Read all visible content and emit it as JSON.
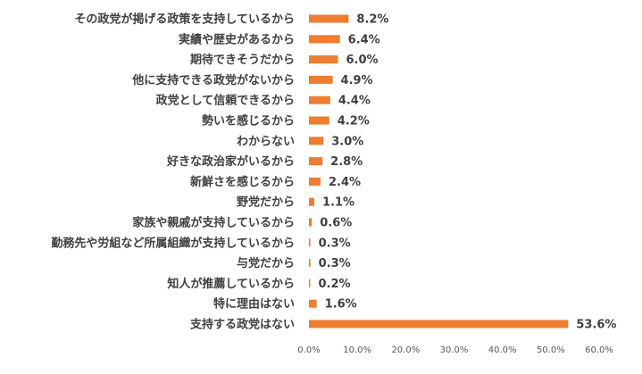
{
  "chart_data": {
    "type": "bar",
    "orientation": "horizontal",
    "categories": [
      "その政党が掲げる政策を支持しているから",
      "実績や歴史があるから",
      "期待できそうだから",
      "他に支持できる政党がないから",
      "政党として信頼できるから",
      "勢いを感じるから",
      "わからない",
      "好きな政治家がいるから",
      "新鮮さを感じるから",
      "野党だから",
      "家族や親戚が支持しているから",
      "勤務先や労組など所属組織が支持しているから",
      "与党だから",
      "知人が推薦しているから",
      "特に理由はない",
      "支持する政党はない"
    ],
    "values": [
      8.2,
      6.4,
      6.0,
      4.9,
      4.4,
      4.2,
      3.0,
      2.8,
      2.4,
      1.1,
      0.6,
      0.3,
      0.3,
      0.2,
      1.6,
      53.6
    ],
    "value_labels": [
      "8.2%",
      "6.4%",
      "6.0%",
      "4.9%",
      "4.4%",
      "4.2%",
      "3.0%",
      "2.8%",
      "2.4%",
      "1.1%",
      "0.6%",
      "0.3%",
      "0.3%",
      "0.2%",
      "1.6%",
      "53.6%"
    ],
    "x_ticks": [
      0,
      10,
      20,
      30,
      40,
      50,
      60
    ],
    "x_tick_labels": [
      "0.0%",
      "10.0%",
      "20.0%",
      "30.0%",
      "40.0%",
      "50.0%",
      "60.0%"
    ],
    "xlim": [
      0,
      60
    ],
    "bar_color": "#ED7D31",
    "label_color": "#404040",
    "tick_color": "#595959",
    "grid": false,
    "legend": "none"
  }
}
